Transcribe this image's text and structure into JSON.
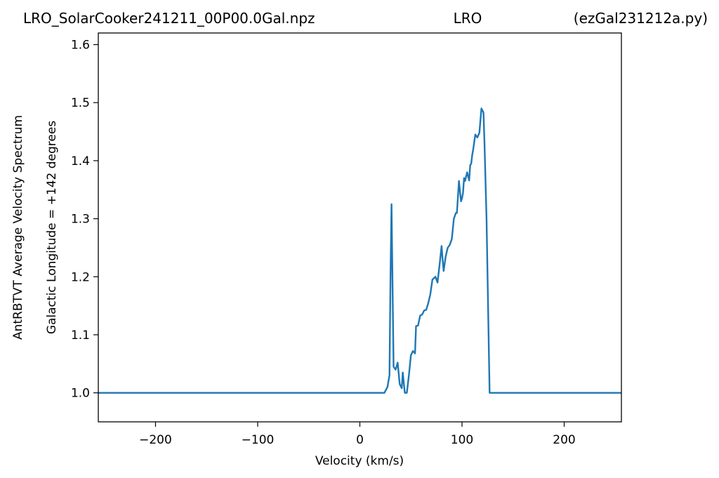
{
  "header": {
    "title_left": "LRO_SolarCooker241211_00P00.0Gal.npz",
    "title_center": "LRO",
    "title_right": "(ezGal231212a.py)"
  },
  "chart_data": {
    "type": "line",
    "title": "LRO_SolarCooker241211_00P00.0Gal.npz",
    "xlabel": "Velocity (km/s)",
    "ylabel": "AntRBTVT Average Velocity Spectrum",
    "ylabel2": "Galactic Longitude = +142 degrees",
    "xlim": [
      -256,
      256
    ],
    "ylim": [
      0.95,
      1.62
    ],
    "xticks": [
      -200,
      -100,
      0,
      100,
      200
    ],
    "xtick_labels": [
      "−200",
      "−100",
      "0",
      "100",
      "200"
    ],
    "yticks": [
      1.0,
      1.1,
      1.2,
      1.3,
      1.4,
      1.5,
      1.6
    ],
    "ytick_labels": [
      "1.0",
      "1.1",
      "1.2",
      "1.3",
      "1.4",
      "1.5",
      "1.6"
    ],
    "grid": false,
    "line_color": "#1f77b4",
    "series": [
      {
        "x": [
          -256,
          24,
          27,
          29,
          30,
          31,
          33,
          35,
          37,
          39,
          41,
          42,
          44,
          46,
          48,
          50,
          52,
          54,
          55,
          57,
          59,
          61,
          63,
          65,
          67,
          69,
          71,
          74,
          76,
          78,
          80,
          81,
          82,
          84,
          86,
          88,
          90,
          92,
          94,
          95,
          97,
          99,
          100,
          101,
          102,
          103,
          105,
          107,
          108,
          109,
          110,
          111,
          113,
          115,
          117,
          119,
          121,
          122,
          124,
          126,
          127,
          128,
          129,
          130,
          256
        ],
        "y": [
          1.0,
          1.0,
          1.01,
          1.03,
          1.2,
          1.325,
          1.045,
          1.04,
          1.052,
          1.015,
          1.008,
          1.035,
          1.0,
          1.0,
          1.03,
          1.065,
          1.072,
          1.068,
          1.115,
          1.116,
          1.133,
          1.135,
          1.142,
          1.143,
          1.155,
          1.17,
          1.195,
          1.2,
          1.19,
          1.22,
          1.253,
          1.23,
          1.21,
          1.235,
          1.25,
          1.255,
          1.265,
          1.3,
          1.31,
          1.31,
          1.365,
          1.33,
          1.335,
          1.345,
          1.37,
          1.365,
          1.38,
          1.366,
          1.392,
          1.395,
          1.41,
          1.42,
          1.445,
          1.44,
          1.448,
          1.49,
          1.483,
          1.43,
          1.3,
          1.1,
          1.0,
          1.0,
          1.0,
          1.0,
          1.0
        ]
      }
    ]
  }
}
